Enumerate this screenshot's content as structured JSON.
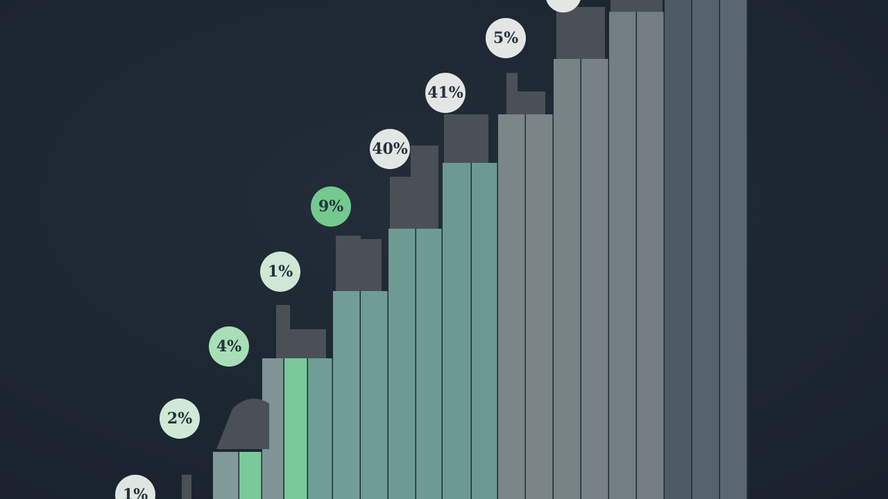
{
  "labels": [
    "1%",
    "2%",
    "4%",
    "1%",
    "9%",
    "40%",
    "41%",
    "5%"
  ]
}
